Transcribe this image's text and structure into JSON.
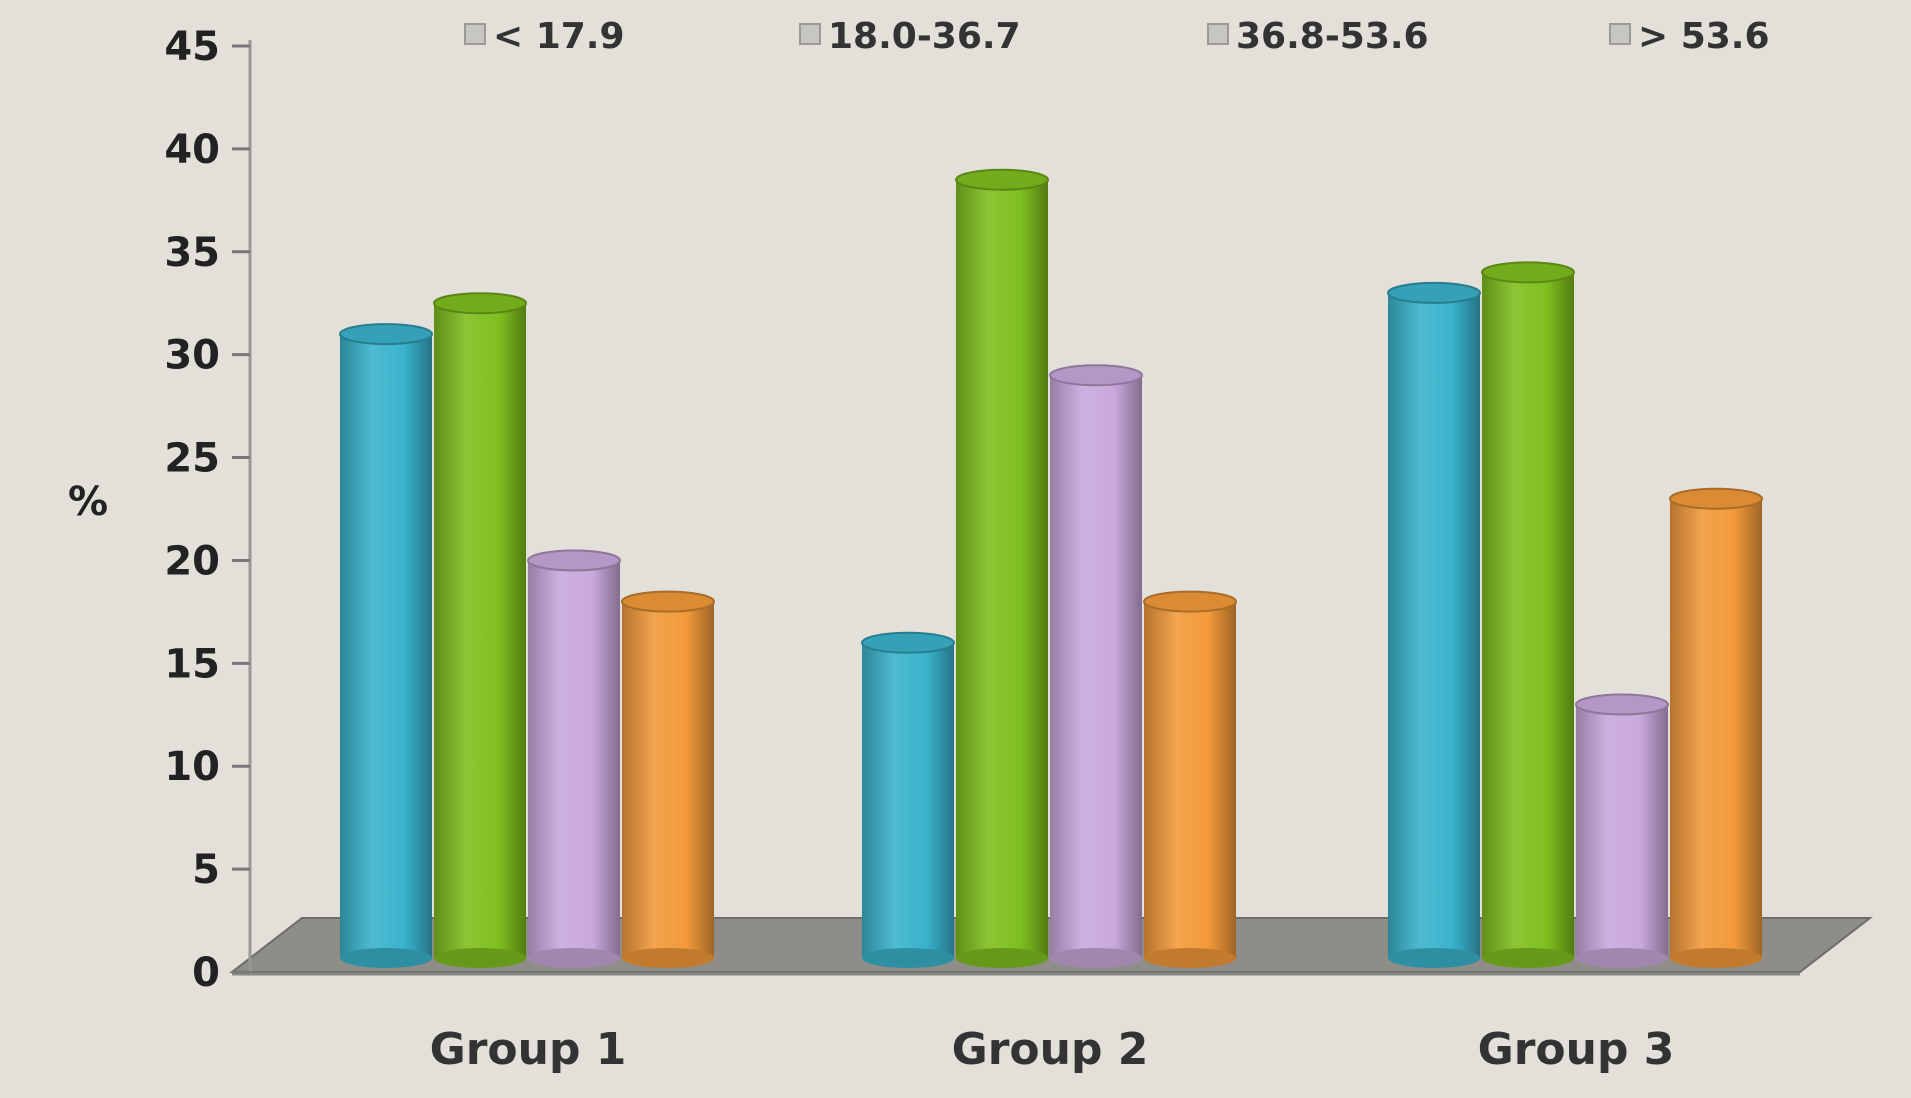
{
  "chart_data": {
    "type": "bar",
    "style": "3d-cylinder",
    "title": "",
    "xlabel": "",
    "ylabel": "%",
    "ylim": [
      0,
      45
    ],
    "yticks": [
      0,
      5,
      10,
      15,
      20,
      25,
      30,
      35,
      40,
      45
    ],
    "categories": [
      "Group 1",
      "Group 2",
      "Group 3"
    ],
    "legend_position": "top",
    "series": [
      {
        "name": "< 17.9",
        "color": "#3ab3cc",
        "values": [
          31,
          16,
          33
        ]
      },
      {
        "name": "18.0-36.7",
        "color": "#7fbf1f",
        "values": [
          32.5,
          38.5,
          34
        ]
      },
      {
        "name": "36.8-53.6",
        "color": "#c9a8dc",
        "values": [
          20,
          29,
          13
        ]
      },
      {
        "name": "> 53.6",
        "color": "#f29a3a",
        "values": [
          18,
          18,
          23
        ]
      }
    ]
  }
}
